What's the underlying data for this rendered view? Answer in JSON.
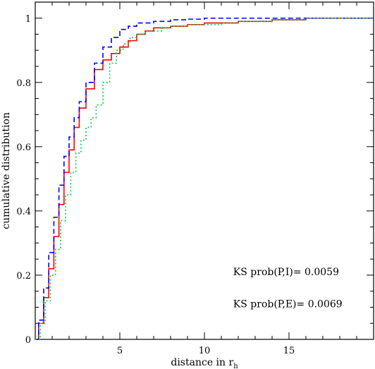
{
  "chart_data": {
    "type": "line",
    "title": "",
    "xlabel": "distance in r",
    "xlabel_subscript": "h",
    "ylabel": "cumulative distribution",
    "xlim": [
      0,
      20
    ],
    "ylim": [
      0,
      1.05
    ],
    "x_ticks": [
      5,
      10,
      15
    ],
    "x_tick_labels": [
      "5",
      "10",
      "15"
    ],
    "y_ticks": [
      0,
      0.2,
      0.4,
      0.6,
      0.8,
      1
    ],
    "y_tick_labels": [
      "0",
      "0.2",
      "0.4",
      "0.6",
      "0.8",
      "1"
    ],
    "grid": false,
    "legend": "none",
    "series": [
      {
        "color": "#ff0000",
        "style": "solid",
        "x": [
          0,
          0.2,
          0.5,
          0.8,
          1.1,
          1.4,
          1.7,
          2.0,
          2.3,
          2.6,
          3.0,
          3.5,
          4.0,
          4.5,
          5.0,
          5.5,
          6.0,
          6.5,
          7.0,
          8.0,
          9.0,
          10.0,
          11.0,
          12.0,
          13.0,
          14.0,
          15.0,
          16.0,
          17.0,
          18.0,
          19.0,
          19.8
        ],
        "y": [
          0,
          0.05,
          0.13,
          0.22,
          0.32,
          0.42,
          0.52,
          0.59,
          0.66,
          0.72,
          0.78,
          0.84,
          0.87,
          0.89,
          0.91,
          0.93,
          0.95,
          0.96,
          0.97,
          0.975,
          0.98,
          0.985,
          0.985,
          0.99,
          0.99,
          0.995,
          0.995,
          1.0,
          1.0,
          1.0,
          1.0,
          1.0
        ]
      },
      {
        "color": "#0000ff",
        "style": "dashed",
        "x": [
          0,
          0.2,
          0.5,
          0.8,
          1.1,
          1.4,
          1.7,
          2.0,
          2.3,
          2.6,
          3.0,
          3.5,
          4.0,
          4.5,
          5.0,
          5.5,
          6.0,
          7.0,
          8.0,
          9.0,
          10.0,
          12.0,
          14.0,
          16.0,
          18.0,
          19.8
        ],
        "y": [
          0,
          0.06,
          0.16,
          0.27,
          0.38,
          0.48,
          0.57,
          0.63,
          0.69,
          0.74,
          0.8,
          0.86,
          0.91,
          0.94,
          0.965,
          0.975,
          0.985,
          0.99,
          0.995,
          0.997,
          1.0,
          1.0,
          1.0,
          1.0,
          1.0,
          1.0
        ]
      },
      {
        "color": "#00cc44",
        "style": "dotted",
        "x": [
          0,
          0.3,
          0.6,
          0.9,
          1.2,
          1.5,
          1.8,
          2.1,
          2.4,
          2.7,
          3.0,
          3.3,
          3.6,
          4.0,
          4.4,
          4.8,
          5.2,
          5.6,
          6.0,
          6.5,
          7.0,
          7.5,
          8.0,
          9.0,
          10.0,
          11.0,
          12.0,
          13.0,
          14.0,
          16.0,
          18.0,
          19.8
        ],
        "y": [
          0,
          0.05,
          0.12,
          0.2,
          0.28,
          0.37,
          0.45,
          0.52,
          0.58,
          0.62,
          0.66,
          0.69,
          0.73,
          0.8,
          0.86,
          0.9,
          0.92,
          0.94,
          0.95,
          0.96,
          0.96,
          0.97,
          0.975,
          0.98,
          0.98,
          0.985,
          0.99,
          0.99,
          0.995,
          1.0,
          1.0,
          1.0
        ]
      }
    ],
    "annotations": [
      {
        "text": "KS prob(P,I)=  0.0059",
        "x": 11.7,
        "y": 0.2
      },
      {
        "text": "KS prob(P,E)=  0.0069",
        "x": 11.7,
        "y": 0.1
      }
    ]
  }
}
